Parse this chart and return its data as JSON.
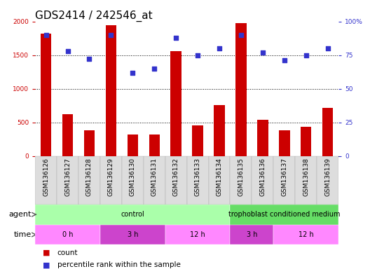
{
  "title": "GDS2414 / 242546_at",
  "samples": [
    "GSM136126",
    "GSM136127",
    "GSM136128",
    "GSM136129",
    "GSM136130",
    "GSM136131",
    "GSM136132",
    "GSM136133",
    "GSM136134",
    "GSM136135",
    "GSM136136",
    "GSM136137",
    "GSM136138",
    "GSM136139"
  ],
  "counts": [
    1820,
    620,
    380,
    1940,
    320,
    320,
    1560,
    460,
    760,
    1980,
    540,
    380,
    430,
    720
  ],
  "percentiles": [
    90,
    78,
    72,
    90,
    62,
    65,
    88,
    75,
    80,
    90,
    77,
    71,
    75,
    80
  ],
  "count_color": "#cc0000",
  "percentile_color": "#3333cc",
  "ylim_left": [
    0,
    2000
  ],
  "ylim_right": [
    0,
    100
  ],
  "yticks_left": [
    0,
    500,
    1000,
    1500,
    2000
  ],
  "yticks_right": [
    0,
    25,
    50,
    75,
    100
  ],
  "agent_groups": [
    {
      "label": "control",
      "start": 0,
      "end": 9,
      "color": "#aaffaa"
    },
    {
      "label": "trophoblast conditioned medium",
      "start": 9,
      "end": 14,
      "color": "#66dd66"
    }
  ],
  "time_groups": [
    {
      "label": "0 h",
      "start": 0,
      "end": 3,
      "color": "#ff88ff"
    },
    {
      "label": "3 h",
      "start": 3,
      "end": 6,
      "color": "#cc44cc"
    },
    {
      "label": "12 h",
      "start": 6,
      "end": 9,
      "color": "#ff88ff"
    },
    {
      "label": "3 h",
      "start": 9,
      "end": 11,
      "color": "#cc44cc"
    },
    {
      "label": "12 h",
      "start": 11,
      "end": 14,
      "color": "#ff88ff"
    }
  ],
  "xticklabel_bg": "#dddddd",
  "background_color": "#ffffff",
  "bar_width": 0.5,
  "tick_label_fontsize": 6.5,
  "title_fontsize": 11,
  "legend_fontsize": 7.5
}
